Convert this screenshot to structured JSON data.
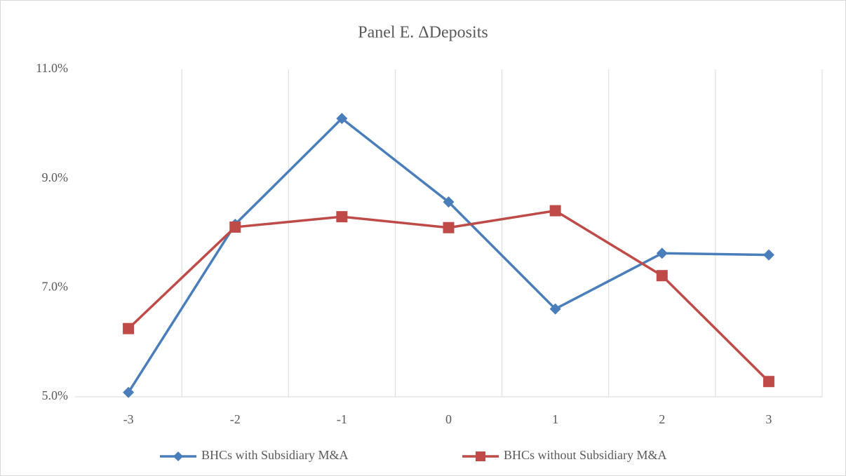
{
  "chart_data": {
    "type": "line",
    "title": "Panel E. ΔDeposits",
    "categories": [
      "-3",
      "-2",
      "-1",
      "0",
      "1",
      "2",
      "3"
    ],
    "series": [
      {
        "name": "BHCs with Subsidiary M&A",
        "color": "#4a7ebb",
        "marker": "diamond",
        "values": [
          5.08,
          8.16,
          10.1,
          8.57,
          6.61,
          7.63,
          7.6
        ]
      },
      {
        "name": "BHCs without Subsidiary M&A",
        "color": "#be4b48",
        "marker": "square",
        "values": [
          6.25,
          8.11,
          8.3,
          8.1,
          8.41,
          7.22,
          5.28
        ]
      }
    ],
    "ylim": [
      5,
      11
    ],
    "yticks": [
      {
        "value": 5,
        "label": "5.0%"
      },
      {
        "value": 7,
        "label": "7.0%"
      },
      {
        "value": 9,
        "label": "9.0%"
      },
      {
        "value": 11,
        "label": "11.0%"
      }
    ],
    "category_grid": true,
    "legend": "bottom"
  }
}
